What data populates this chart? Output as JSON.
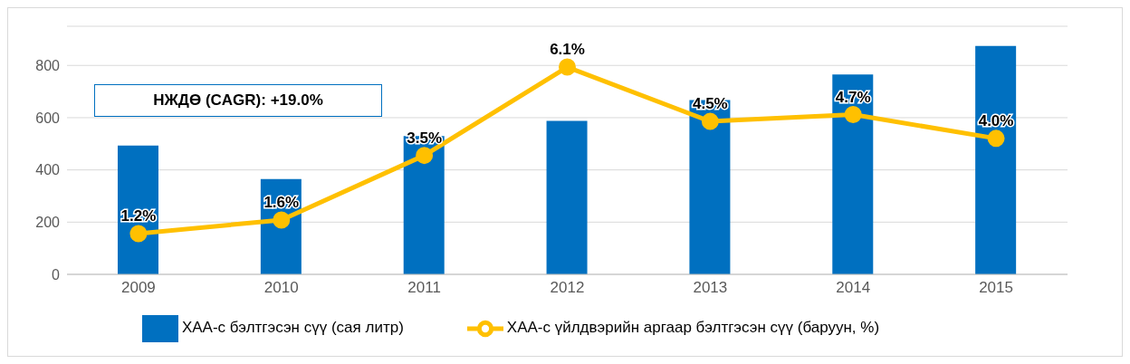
{
  "chart_data": {
    "type": "bar",
    "categories": [
      "2009",
      "2010",
      "2011",
      "2012",
      "2013",
      "2014",
      "2015"
    ],
    "series": [
      {
        "name": "ХАА-с бэлтгэсэн сүү (сая литр)",
        "color": "#0070c0",
        "values": [
          493,
          365,
          530,
          588,
          667,
          765,
          875
        ]
      },
      {
        "name": "ХАА-с үйлдвэрийн аргаар бэлтгэсэн сүү (баруун, %)",
        "type": "line",
        "axis": "y2",
        "color": "#ffc000",
        "marker": "circle",
        "values": [
          1.2,
          1.6,
          3.5,
          6.1,
          4.5,
          4.7,
          4.0
        ],
        "value_labels": [
          "1.2%",
          "1.6%",
          "3.5%",
          "6.1%",
          "4.5%",
          "4.7%",
          "4.0%"
        ]
      }
    ],
    "ylim": [
      0,
      950
    ],
    "yticks": [
      0,
      200,
      400,
      600,
      800
    ],
    "y2lim": [
      0,
      7.3
    ],
    "grid": "y",
    "legend": "bottom",
    "annotations": [
      "НЖДӨ (CAGR): +19.0%"
    ]
  }
}
